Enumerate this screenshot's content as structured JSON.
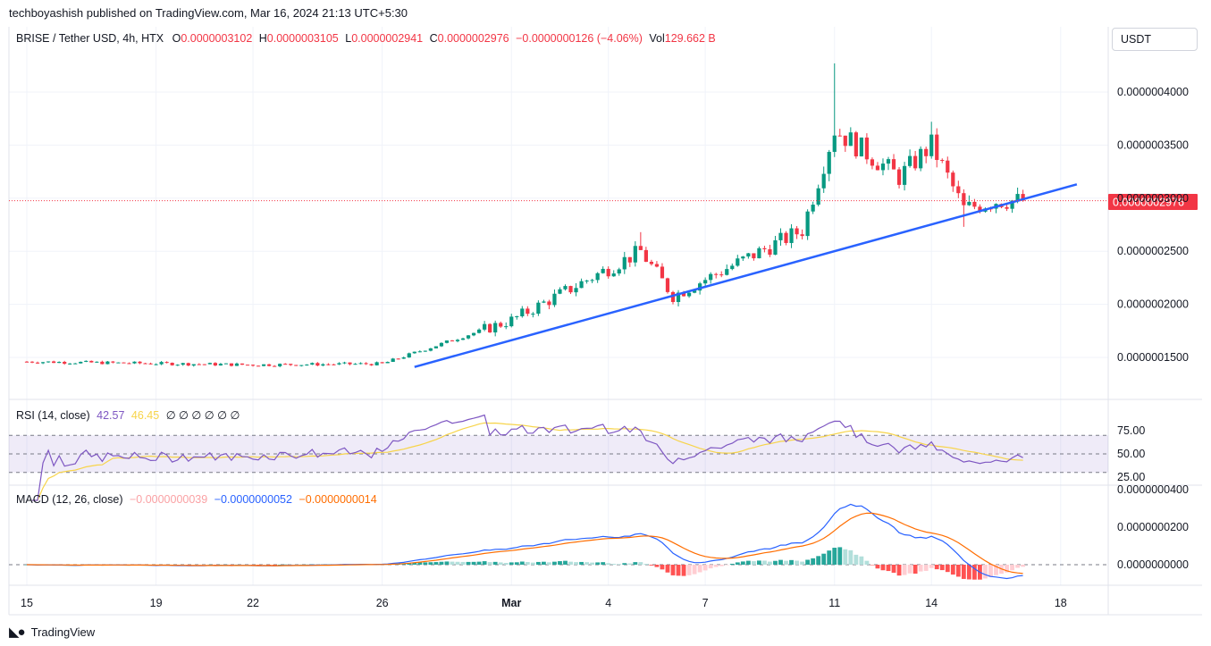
{
  "header": {
    "published": "techboyashish published on TradingView.com, Mar 16, 2024 21:13 UTC+5:30"
  },
  "legend": {
    "symbol": "BRISE / Tether USD, 4h, HTX",
    "o_label": "O",
    "o_value": "0.0000003102",
    "h_label": "H",
    "h_value": "0.0000003105",
    "l_label": "L",
    "l_value": "0.0000002941",
    "c_label": "C",
    "c_value": "0.0000002976",
    "change": "−0.0000000126 (−4.06%)",
    "vol_label": "Vol",
    "vol_value": "129.662 B"
  },
  "unit_selector": "USDT",
  "price_label": "0.0000002976",
  "rsi": {
    "label": "RSI (14, close)",
    "value": "42.57",
    "ma_value": "46.45",
    "extras": "∅ ∅ ∅ ∅ ∅ ∅",
    "ticks": [
      "75.00",
      "50.00",
      "25.00"
    ]
  },
  "macd": {
    "label": "MACD (12, 26, close)",
    "hist_value": "−0.0000000039",
    "macd_value": "−0.0000000052",
    "signal_value": "−0.0000000014",
    "ticks": [
      "0.0000000400",
      "0.0000000200",
      "0.0000000000"
    ]
  },
  "colors": {
    "up": "#089981",
    "down": "#f23645",
    "trendline": "#2962ff",
    "rsi_line": "#7e57c2",
    "rsi_ma": "#f7d44a",
    "macd_line": "#2962ff",
    "signal_line": "#ff6d00"
  },
  "footer": {
    "brand": "TradingView"
  },
  "chart_data": {
    "type": "candlestick",
    "title": "BRISE / Tether USD, 4h, HTX",
    "y_axis_ticks": [
      "0.0000004000",
      "0.0000003500",
      "0.0000003000",
      "0.0000002500",
      "0.0000002000",
      "0.0000001500"
    ],
    "y_unit_scale": "1e-7",
    "ylim": [
      1e-07,
      4.3e-07
    ],
    "x_axis_ticks": [
      "15",
      "19",
      "22",
      "26",
      "Mar",
      "4",
      "7",
      "11",
      "14",
      "18"
    ],
    "last_close": 2.976e-07,
    "trendline": {
      "from": {
        "date": "Feb 27",
        "price": 1.41e-07
      },
      "to": {
        "date": "Mar 18 (12:00)",
        "price": 3.13e-07
      }
    },
    "key_points": [
      {
        "date": "Feb 15",
        "close": 1.46e-07
      },
      {
        "date": "Feb 22",
        "close": 1.43e-07
      },
      {
        "date": "Feb 26",
        "close": 1.44e-07
      },
      {
        "date": "Mar 1",
        "close": 1.85e-07
      },
      {
        "date": "Mar 5",
        "close": 2.5e-07,
        "high": 2.68e-07
      },
      {
        "date": "Mar 6",
        "close": 2.08e-07
      },
      {
        "date": "Mar 10",
        "close": 2.7e-07
      },
      {
        "date": "Mar 11",
        "close": 3.65e-07,
        "high": 4.27e-07
      },
      {
        "date": "Mar 13",
        "close": 3.2e-07
      },
      {
        "date": "Mar 14",
        "close": 3.5e-07,
        "high": 3.72e-07
      },
      {
        "date": "Mar 15",
        "close": 2.9e-07,
        "low": 2.73e-07
      },
      {
        "date": "Mar 16",
        "close": 2.976e-07
      }
    ]
  }
}
